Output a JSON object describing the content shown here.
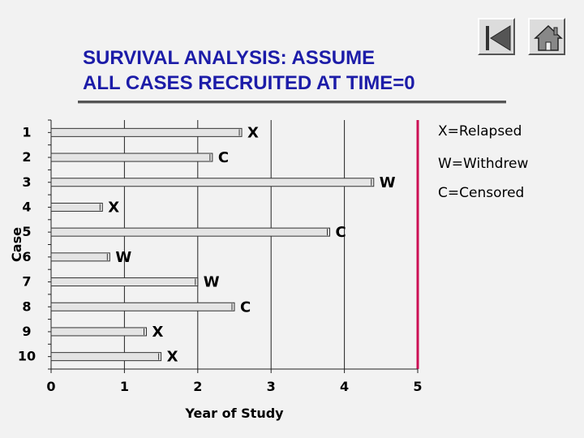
{
  "title": "SURVIVAL ANALYSIS: ASSUME\nALL CASES RECRUITED AT TIME=0",
  "nav": {
    "prev_icon": "previous-slide-icon",
    "home_icon": "home-icon"
  },
  "legend": [
    "X=Relapsed",
    "W=Withdrew",
    "C=Censored"
  ],
  "colors": {
    "title": "#1c1ca8",
    "cutoff_line": "#cc1055",
    "bar_fill": "#e4e4e4"
  },
  "chart_data": {
    "type": "bar",
    "orientation": "horizontal",
    "categories": [
      "1",
      "2",
      "3",
      "4",
      "5",
      "6",
      "7",
      "8",
      "9",
      "10"
    ],
    "values": [
      2.6,
      2.2,
      4.4,
      0.7,
      3.8,
      0.8,
      2.0,
      2.5,
      1.3,
      1.5
    ],
    "outcome_labels": [
      "X",
      "C",
      "W",
      "X",
      "C",
      "W",
      "W",
      "C",
      "X",
      "X"
    ],
    "xlabel": "Year of Study",
    "ylabel": "Case",
    "xlim": [
      0,
      5
    ],
    "xticks": [
      "0",
      "1",
      "2",
      "3",
      "4",
      "5"
    ],
    "vertical_gridlines": true,
    "reference_line_x": 5
  }
}
